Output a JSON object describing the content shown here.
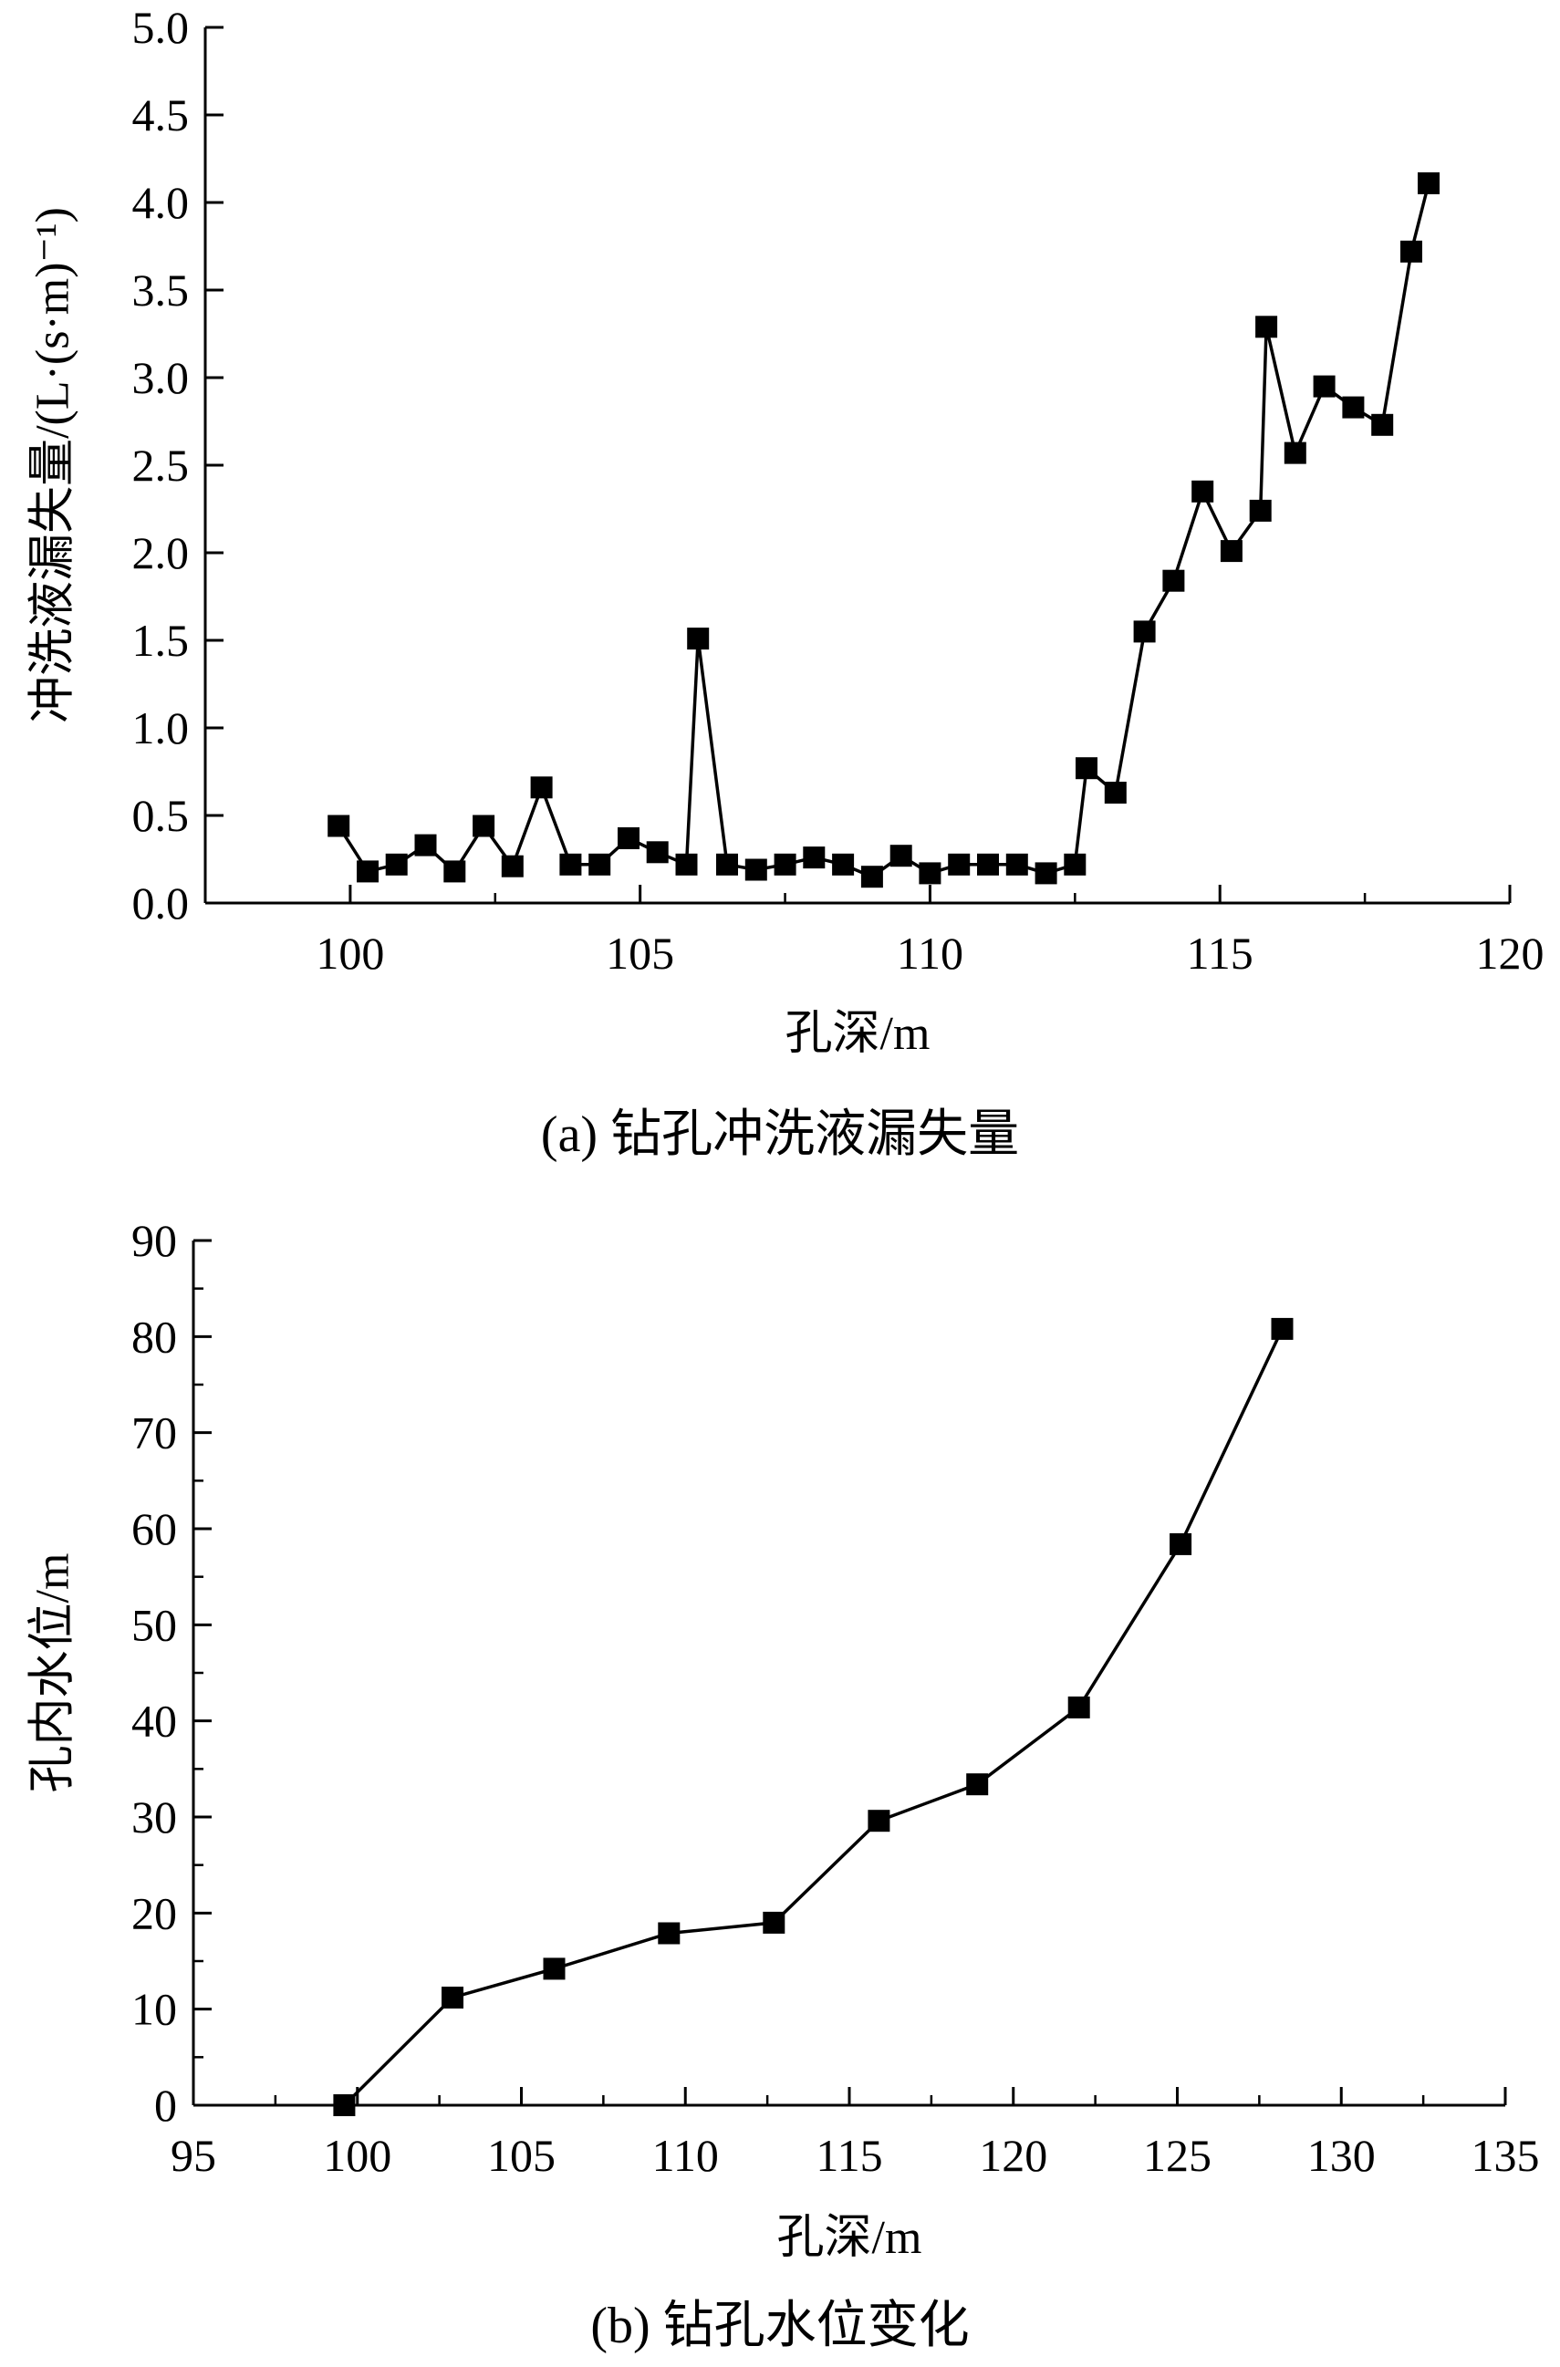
{
  "chart_data": [
    {
      "type": "line",
      "caption": "(a) 钻孔冲洗液漏失量",
      "xlabel": "孔深/m",
      "ylabel": "冲洗液漏失量/(L·(s·m)⁻¹)",
      "xlim": [
        97.5,
        120
      ],
      "ylim": [
        0,
        5.0
      ],
      "x_ticks": [
        "100",
        "105",
        "110",
        "115",
        "120"
      ],
      "y_ticks": [
        "0.0",
        "0.5",
        "1.0",
        "1.5",
        "2.0",
        "2.5",
        "3.0",
        "3.5",
        "4.0",
        "4.5",
        "5.0"
      ],
      "marker": "square",
      "grid": false,
      "series": [
        {
          "x": [
            99.8,
            100.3,
            100.8,
            101.3,
            101.8,
            102.3,
            102.8,
            103.3,
            103.8,
            104.3,
            104.8,
            105.3,
            105.8,
            106.0,
            106.5,
            107.0,
            107.5,
            108.0,
            108.5,
            109.0,
            109.5,
            110.0,
            110.5,
            111.0,
            111.5,
            112.0,
            112.5,
            112.7,
            113.2,
            113.7,
            114.2,
            114.7,
            115.2,
            115.7,
            115.8,
            116.3,
            116.8,
            117.3,
            117.8,
            118.3,
            118.6
          ],
          "y": [
            0.44,
            0.18,
            0.22,
            0.33,
            0.18,
            0.44,
            0.21,
            0.66,
            0.22,
            0.22,
            0.37,
            0.29,
            0.22,
            1.51,
            0.22,
            0.19,
            0.22,
            0.26,
            0.22,
            0.15,
            0.27,
            0.17,
            0.22,
            0.22,
            0.22,
            0.17,
            0.22,
            0.77,
            0.63,
            1.55,
            1.84,
            2.35,
            2.01,
            2.24,
            3.29,
            2.57,
            2.95,
            2.83,
            2.73,
            3.72,
            4.11
          ]
        }
      ]
    },
    {
      "type": "line",
      "caption": "(b) 钻孔水位变化",
      "xlabel": "孔深/m",
      "ylabel": "孔内水位/m",
      "xlim": [
        95,
        135
      ],
      "ylim": [
        0,
        90
      ],
      "x_ticks": [
        "95",
        "100",
        "105",
        "110",
        "115",
        "120",
        "125",
        "130",
        "135"
      ],
      "y_ticks": [
        "0",
        "10",
        "20",
        "30",
        "40",
        "50",
        "60",
        "70",
        "80",
        "90"
      ],
      "marker": "square",
      "grid": false,
      "series": [
        {
          "x": [
            99.6,
            102.9,
            106.0,
            109.5,
            112.7,
            115.9,
            118.9,
            122.0,
            125.1,
            128.2
          ],
          "y": [
            0,
            11.2,
            14.2,
            17.9,
            19.0,
            29.6,
            33.4,
            41.4,
            58.4,
            80.8
          ]
        }
      ]
    }
  ]
}
